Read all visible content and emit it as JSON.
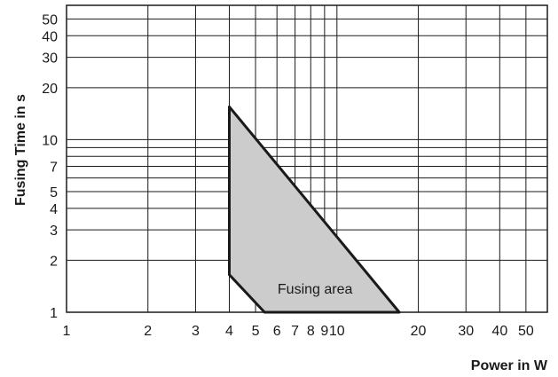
{
  "chart_data": {
    "type": "area",
    "title": "",
    "xlabel": "Power in W",
    "ylabel": "Fusing Time in s",
    "x_scale": "log",
    "y_scale": "log",
    "xlim": [
      1,
      60
    ],
    "ylim": [
      1,
      60
    ],
    "grid": true,
    "x_gridlines": [
      1,
      2,
      3,
      4,
      5,
      6,
      7,
      8,
      9,
      10,
      20,
      30,
      40,
      50,
      60
    ],
    "y_gridlines": [
      1,
      2,
      3,
      4,
      5,
      6,
      7,
      8,
      9,
      10,
      20,
      30,
      40,
      50,
      60
    ],
    "x_ticks": [
      {
        "value": 1,
        "label": "1"
      },
      {
        "value": 2,
        "label": "2"
      },
      {
        "value": 3,
        "label": "3"
      },
      {
        "value": 4,
        "label": "4"
      },
      {
        "value": 5,
        "label": "5"
      },
      {
        "value": 6,
        "label": "6"
      },
      {
        "value": 7,
        "label": "7"
      },
      {
        "value": 8,
        "label": "8"
      },
      {
        "value": 9,
        "label": "9"
      },
      {
        "value": 10,
        "label": "10"
      },
      {
        "value": 20,
        "label": "20"
      },
      {
        "value": 30,
        "label": "30"
      },
      {
        "value": 40,
        "label": "40"
      },
      {
        "value": 50,
        "label": "50"
      }
    ],
    "y_ticks": [
      {
        "value": 1,
        "label": "1"
      },
      {
        "value": 2,
        "label": "2"
      },
      {
        "value": 3,
        "label": "3"
      },
      {
        "value": 4,
        "label": "4"
      },
      {
        "value": 5,
        "label": "5"
      },
      {
        "value": 7,
        "label": "7"
      },
      {
        "value": 10,
        "label": "10"
      },
      {
        "value": 20,
        "label": "20"
      },
      {
        "value": 30,
        "label": "30"
      },
      {
        "value": 40,
        "label": "40"
      },
      {
        "value": 50,
        "label": "50"
      }
    ],
    "series": [
      {
        "name": "Fusing area",
        "points": [
          {
            "x": 4.0,
            "y": 15.5
          },
          {
            "x": 17.0,
            "y": 1.0
          },
          {
            "x": 5.4,
            "y": 1.0
          },
          {
            "x": 4.0,
            "y": 1.65
          }
        ]
      }
    ],
    "annotations": [
      {
        "text": "Fusing area",
        "x": 8.3,
        "y": 1.38
      }
    ],
    "colors": {
      "fill": "#cccccc",
      "outline": "#1a1a1a",
      "grid": "#1a1a1a"
    }
  }
}
